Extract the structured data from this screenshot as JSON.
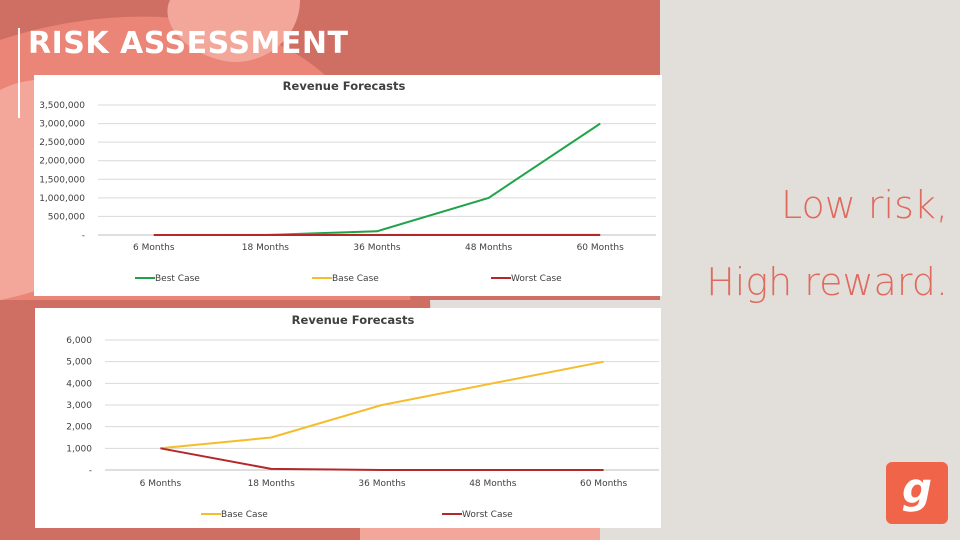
{
  "slide": {
    "title": "RISK ASSESSMENT",
    "tagline_line1": "Low risk,",
    "tagline_line2": "High reward.",
    "logo_letter": "g"
  },
  "colors": {
    "background": "#e2dfda",
    "shape_dark": "#cf6f63",
    "shape_mid": "#ea8577",
    "shape_light": "#f2a79a",
    "best_case": "#1ea34a",
    "base_case": "#f5bc2c",
    "worst_case": "#b4282a",
    "tagline": "#e06a5e",
    "logo": "#f06449"
  },
  "chart_data": [
    {
      "type": "line",
      "title": "Revenue Forecasts",
      "categories": [
        "6 Months",
        "18 Months",
        "36 Months",
        "48 Months",
        "60 Months"
      ],
      "series": [
        {
          "name": "Best Case",
          "values": [
            0,
            0,
            100000,
            1000000,
            3000000
          ],
          "color": "#1ea34a"
        },
        {
          "name": "Base Case",
          "values": [
            1000,
            1500,
            3000,
            4000,
            5000
          ],
          "color": "#f5bc2c"
        },
        {
          "name": "Worst Case",
          "values": [
            1000,
            50,
            0,
            0,
            0
          ],
          "color": "#b4282a"
        }
      ],
      "yticks": [
        "-",
        "500,000",
        "1,000,000",
        "1,500,000",
        "2,000,000",
        "2,500,000",
        "3,000,000",
        "3,500,000"
      ],
      "ylim": [
        0,
        3500000
      ],
      "grid": true,
      "legend": "bottom"
    },
    {
      "type": "line",
      "title": "Revenue Forecasts",
      "categories": [
        "6 Months",
        "18 Months",
        "36 Months",
        "48 Months",
        "60 Months"
      ],
      "series": [
        {
          "name": "Base Case",
          "values": [
            1000,
            1500,
            3000,
            4000,
            5000
          ],
          "color": "#f5bc2c"
        },
        {
          "name": "Worst Case",
          "values": [
            1000,
            50,
            0,
            0,
            0
          ],
          "color": "#b4282a"
        }
      ],
      "yticks": [
        "-",
        "1,000",
        "2,000",
        "3,000",
        "4,000",
        "5,000",
        "6,000"
      ],
      "ylim": [
        0,
        6000
      ],
      "grid": true,
      "legend": "bottom"
    }
  ]
}
